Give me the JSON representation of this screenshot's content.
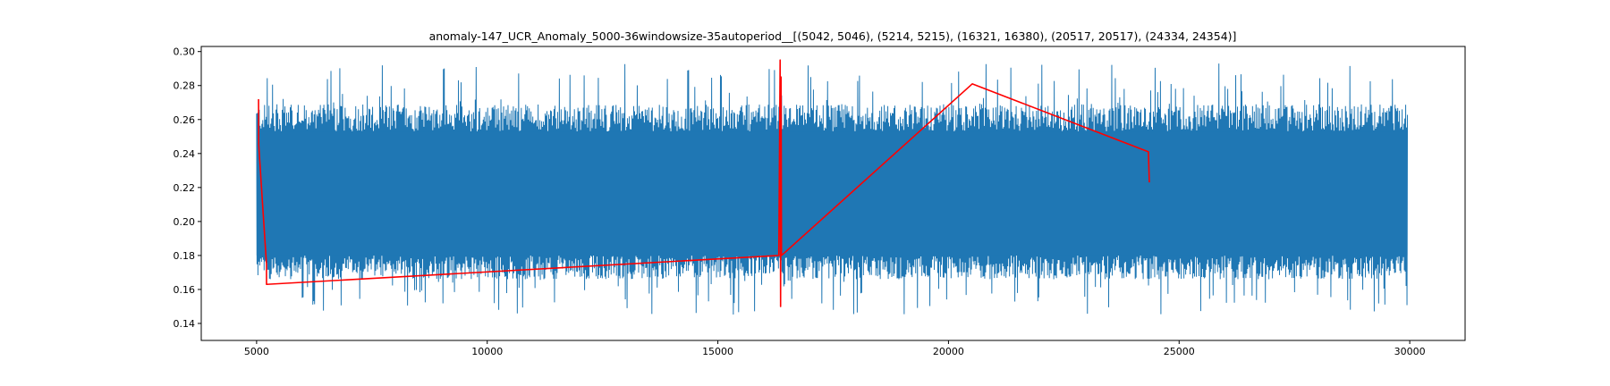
{
  "chart_data": {
    "type": "line",
    "title": "anomaly-147_UCR_Anomaly_5000-36windowsize-35autoperiod__[(5042, 5046), (5214, 5215), (16321, 16380), (20517, 20517), (24334, 24354)]",
    "xlabel": "",
    "ylabel": "",
    "xlim": [
      3800,
      31200
    ],
    "ylim": [
      0.13,
      0.303
    ],
    "x_ticks": [
      5000,
      10000,
      15000,
      20000,
      25000,
      30000
    ],
    "x_tick_labels": [
      "5000",
      "10000",
      "15000",
      "20000",
      "25000",
      "30000"
    ],
    "y_ticks": [
      0.14,
      0.16,
      0.18,
      0.2,
      0.22,
      0.24,
      0.26,
      0.28,
      0.3
    ],
    "y_tick_labels": [
      "0.14",
      "0.16",
      "0.18",
      "0.20",
      "0.22",
      "0.24",
      "0.26",
      "0.28",
      "0.30"
    ],
    "grid": false,
    "series": [
      {
        "color": "#1f77b4",
        "description": "dense periodic signal",
        "x_range": [
          5000,
          29950
        ],
        "typical_low": 0.17,
        "typical_high": 0.265,
        "min": 0.137,
        "max": 0.293
      },
      {
        "color": "#ff0000",
        "points": [
          [
            5042,
            0.272
          ],
          [
            5046,
            0.245
          ],
          [
            5214,
            0.175
          ],
          [
            5215,
            0.163
          ],
          [
            16321,
            0.18
          ],
          [
            16350,
            0.295
          ],
          [
            16360,
            0.15
          ],
          [
            16370,
            0.285
          ],
          [
            16380,
            0.18
          ],
          [
            20517,
            0.281
          ],
          [
            24334,
            0.241
          ],
          [
            24354,
            0.223
          ]
        ]
      }
    ],
    "anomaly_ranges": [
      [
        5042,
        5046
      ],
      [
        5214,
        5215
      ],
      [
        16321,
        16380
      ],
      [
        20517,
        20517
      ],
      [
        24334,
        24354
      ]
    ]
  }
}
